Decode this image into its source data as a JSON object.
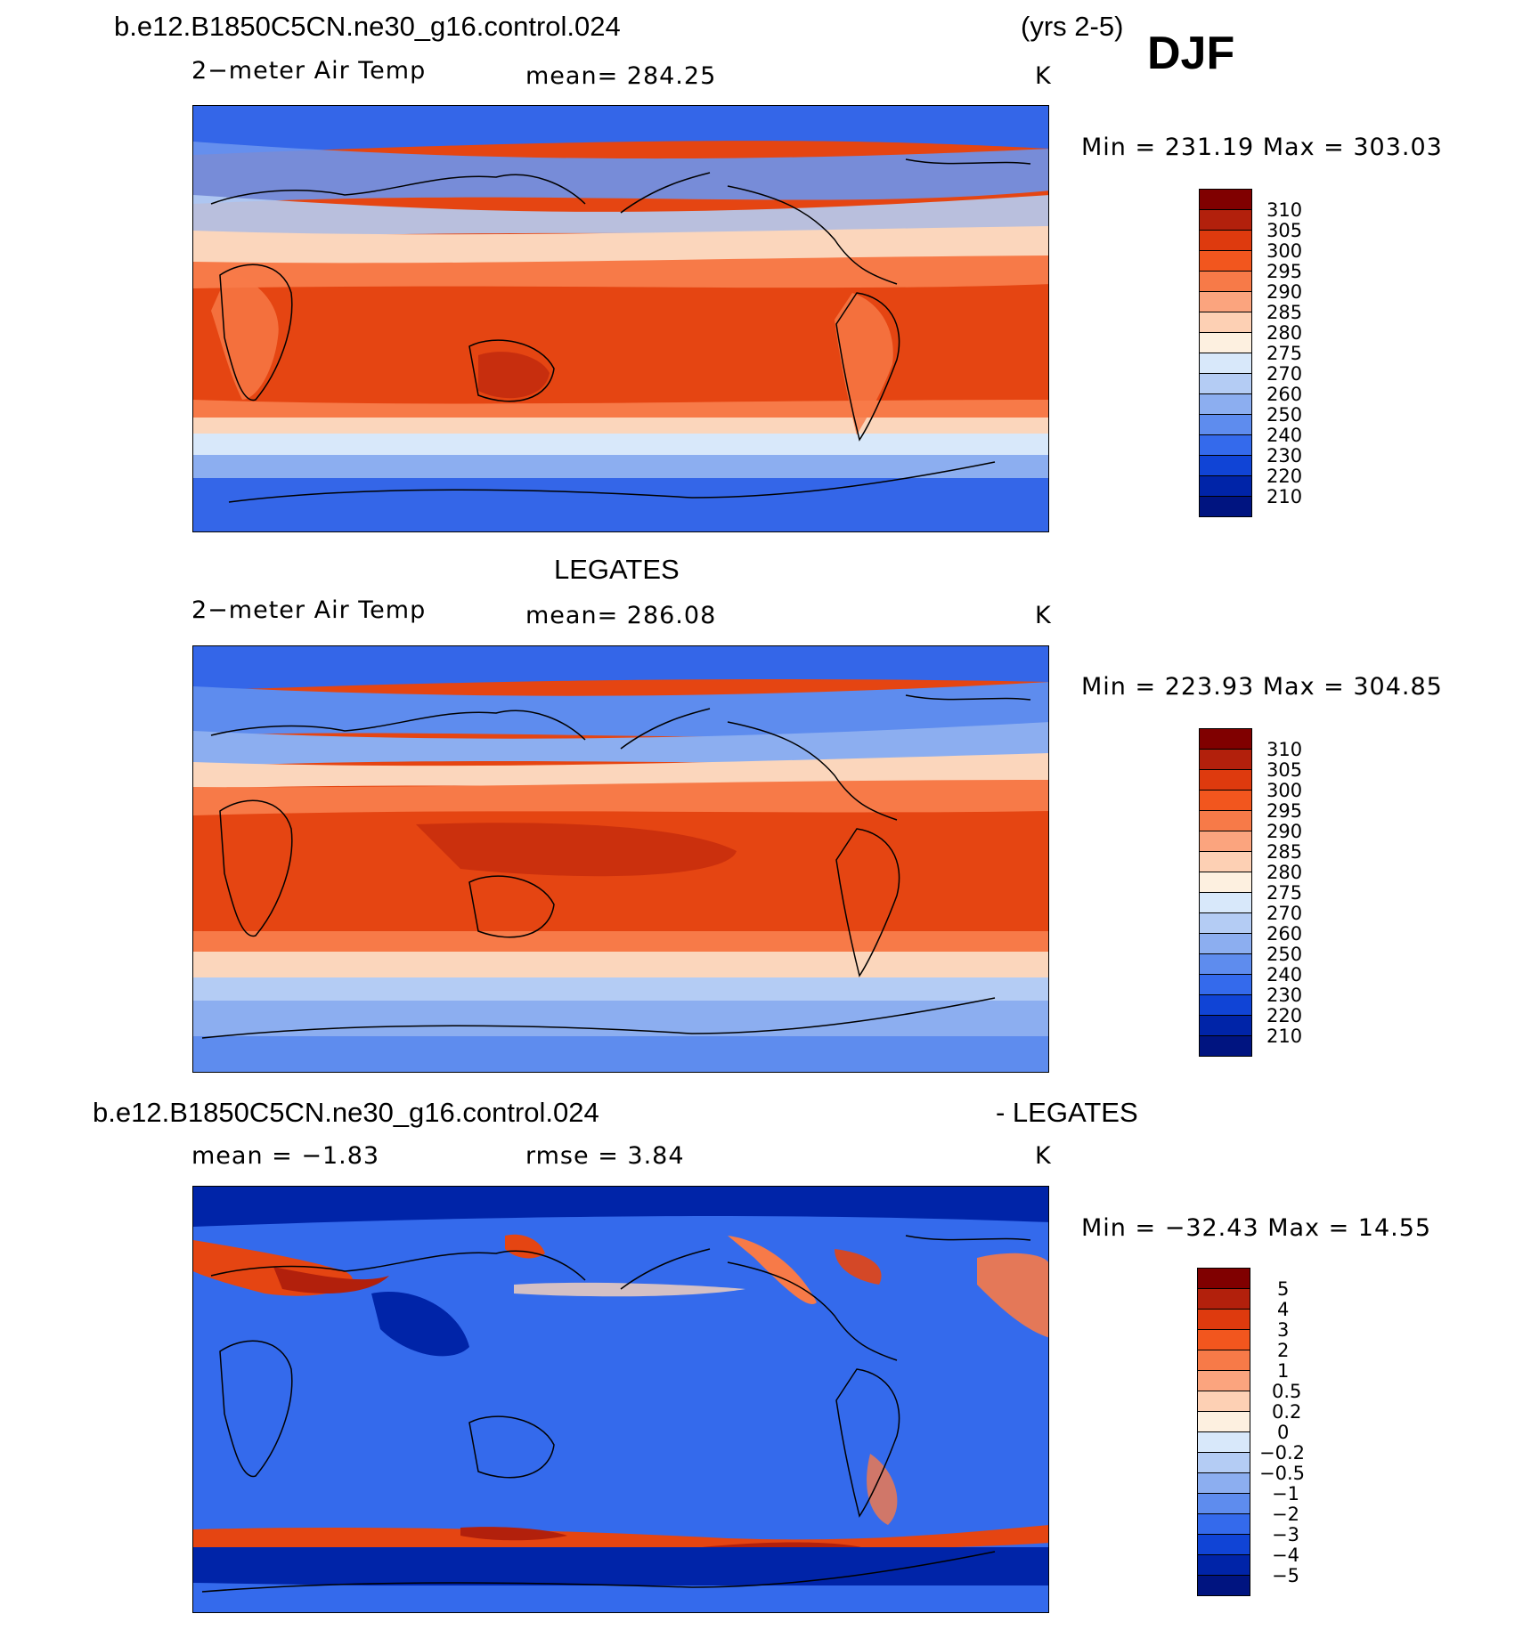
{
  "header": {
    "case": "b.e12.B1850C5CN.ne30_g16.control.024",
    "years": "(yrs 2-5)",
    "season": "DJF"
  },
  "panels": [
    {
      "title": "",
      "field": "2−meter Air Temp",
      "stat": "mean=  284.25",
      "units": "K",
      "minmax": "Min  =  231.19  Max  =  303.03",
      "legend": [
        "310",
        "305",
        "300",
        "295",
        "290",
        "285",
        "280",
        "275",
        "270",
        "260",
        "250",
        "240",
        "230",
        "220",
        "210"
      ]
    },
    {
      "title": "LEGATES",
      "field": "2−meter Air Temp",
      "stat": "mean=  286.08",
      "units": "K",
      "minmax": "Min  =  223.93  Max  =  304.85",
      "legend": [
        "310",
        "305",
        "300",
        "295",
        "290",
        "285",
        "280",
        "275",
        "270",
        "260",
        "250",
        "240",
        "230",
        "220",
        "210"
      ]
    },
    {
      "title_left": "b.e12.B1850C5CN.ne30_g16.control.024",
      "title_right": "- LEGATES",
      "field": "mean  =   −1.83",
      "stat": "rmse  =      3.84",
      "units": "K",
      "minmax": "Min  =  −32.43  Max  =     14.55",
      "legend": [
        "5",
        "4",
        "3",
        "2",
        "1",
        "0.5",
        "0.2",
        "0",
        "−0.2",
        "−0.5",
        "−1",
        "−2",
        "−3",
        "−4",
        "−5"
      ]
    }
  ],
  "colors": {
    "scale": [
      "#800000",
      "#b2200c",
      "#de3a0e",
      "#f2561e",
      "#f77a48",
      "#fba47e",
      "#fdd0b4",
      "#fdf0e0",
      "#d8e8fa",
      "#b4ccf4",
      "#8caef0",
      "#5e8cee",
      "#346aec",
      "#1044d6",
      "#0024a8",
      "#001480"
    ]
  }
}
